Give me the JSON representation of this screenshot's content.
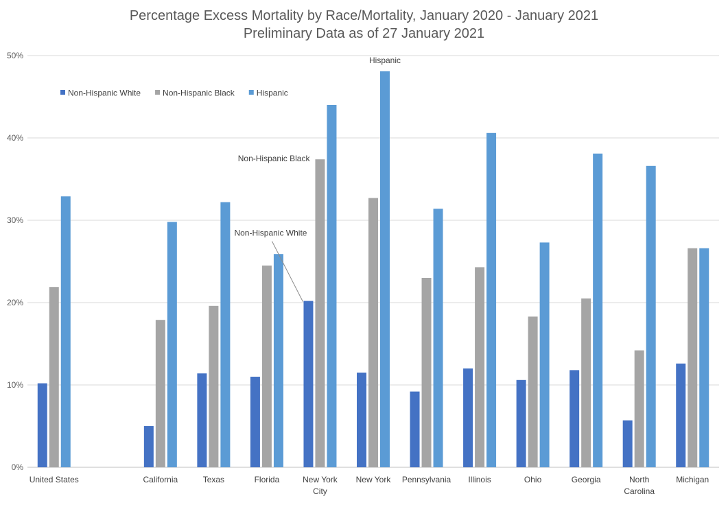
{
  "chart_data": {
    "type": "bar",
    "title": "Percentage Excess Mortality by Race/Mortality, January 2020 - January 2021",
    "subtitle": "Preliminary Data as of 27 January 2021",
    "xlabel": "",
    "ylabel": "",
    "ylim": [
      0,
      50
    ],
    "yticks": [
      "0%",
      "10%",
      "20%",
      "30%",
      "40%",
      "50%"
    ],
    "grid": true,
    "legend_position": "top-left",
    "categories": [
      [
        "United States"
      ],
      [
        ""
      ],
      [
        "California"
      ],
      [
        "Texas"
      ],
      [
        "Florida"
      ],
      [
        "New York",
        "City"
      ],
      [
        "New York"
      ],
      [
        "Pennsylvania"
      ],
      [
        "Illinois"
      ],
      [
        "Ohio"
      ],
      [
        "Georgia"
      ],
      [
        "North",
        "Carolina"
      ],
      [
        "Michigan"
      ]
    ],
    "series": [
      {
        "name": "Non-Hispanic White",
        "color": "#4472C4",
        "values": [
          10.2,
          null,
          5.0,
          11.4,
          11.0,
          20.2,
          11.5,
          9.2,
          12.0,
          10.6,
          11.8,
          5.7,
          12.6
        ]
      },
      {
        "name": "Non-Hispanic Black",
        "color": "#A5A5A5",
        "values": [
          21.9,
          null,
          17.9,
          19.6,
          24.5,
          37.4,
          32.7,
          23.0,
          24.3,
          18.3,
          20.5,
          14.2,
          26.6
        ]
      },
      {
        "name": "Hispanic",
        "color": "#5B9BD5",
        "values": [
          32.9,
          null,
          29.8,
          32.2,
          25.9,
          44.0,
          48.1,
          31.4,
          40.6,
          27.3,
          38.1,
          36.6,
          26.6
        ]
      }
    ],
    "annotations": [
      {
        "text": "Hispanic",
        "category_index": 6,
        "series_index": 2
      },
      {
        "text": "Non-Hispanic Black",
        "category_index": 5,
        "series_index": 1
      },
      {
        "text": "Non-Hispanic White",
        "category_index": 5,
        "series_index": 0
      }
    ]
  }
}
